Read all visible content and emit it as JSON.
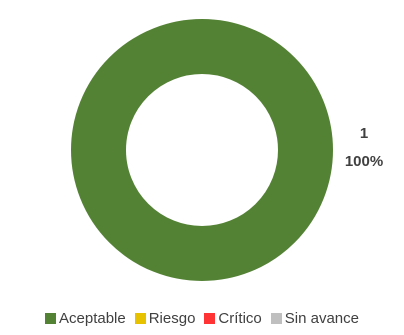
{
  "chart_data": {
    "type": "pie",
    "donut": true,
    "title": "",
    "categories": [
      "Aceptable",
      "Riesgo",
      "Crítico",
      "Sin avance"
    ],
    "values": [
      1,
      0,
      0,
      0
    ],
    "colors": [
      "#548235",
      "#e6c200",
      "#ff3333",
      "#bfbfbf"
    ],
    "data_labels": [
      {
        "category": "Aceptable",
        "value": "1",
        "percent": "100%"
      }
    ],
    "legend": {
      "position": "bottom",
      "items": [
        {
          "label": "Aceptable",
          "color": "#548235"
        },
        {
          "label": "Riesgo",
          "color": "#e6c200"
        },
        {
          "label": "Crítico",
          "color": "#ff3333"
        },
        {
          "label": "Sin avance",
          "color": "#bfbfbf"
        }
      ]
    }
  }
}
